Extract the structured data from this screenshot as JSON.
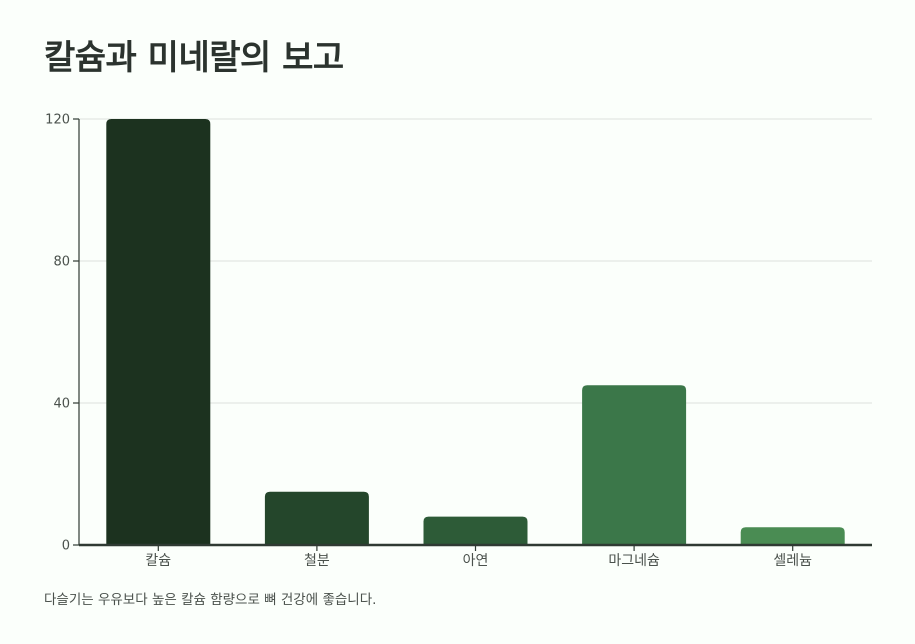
{
  "title": "칼슘과 미네랄의 보고",
  "caption": "다슬기는 우유보다 높은 칼슘 함량으로 뼈 건강에 좋습니다.",
  "chart_data": {
    "type": "bar",
    "title": "칼슘과 미네랄의 보고",
    "xlabel": "",
    "ylabel": "",
    "categories": [
      "칼슘",
      "철분",
      "아연",
      "마그네슘",
      "셀레늄"
    ],
    "values": [
      120,
      15,
      8,
      45,
      5
    ],
    "ylim": [
      0,
      120
    ],
    "yticks": [
      0,
      40,
      80,
      120
    ],
    "grid": true,
    "colors": [
      "#1c321f",
      "#24462b",
      "#2d5b37",
      "#3b7749",
      "#4a8c53"
    ]
  }
}
